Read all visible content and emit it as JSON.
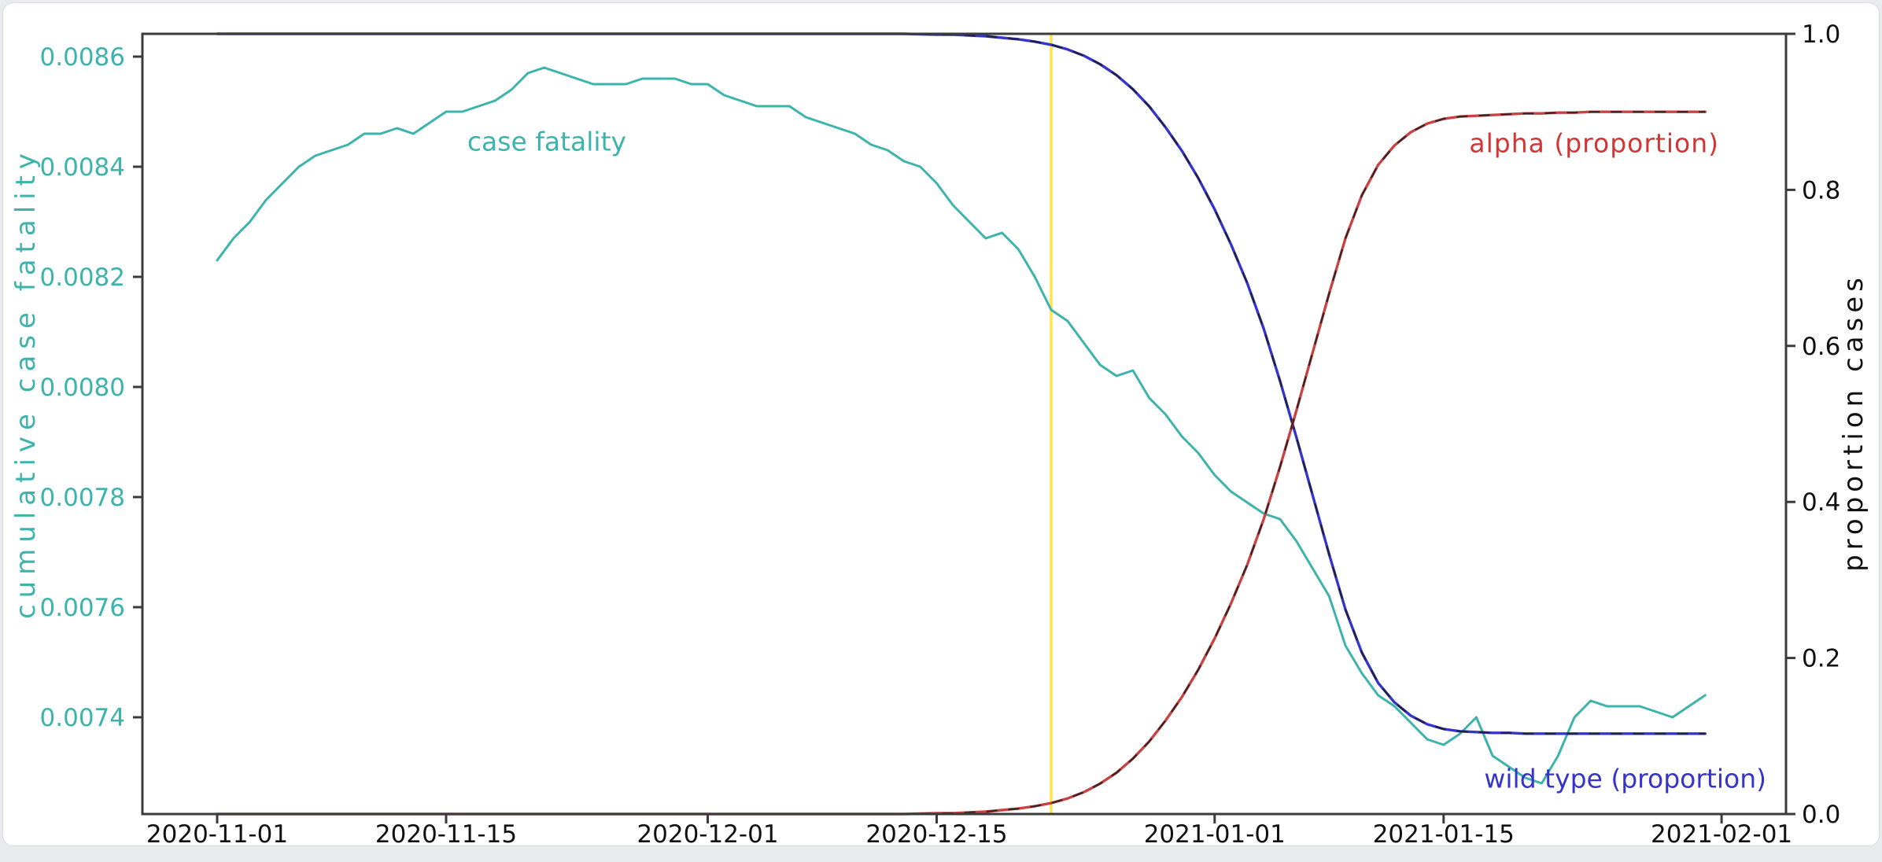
{
  "colors": {
    "case_fatality": "#3cb4ab",
    "wild_type": "#3534cb",
    "alpha": "#c84343",
    "alpha_label": "#d23535",
    "event_line": "#ffe44a",
    "axis": "#3b3b3b",
    "fit_overlay": "#1e1e1e",
    "page_background": "#e9ebee",
    "card_background": "#ffffff"
  },
  "chart_data": {
    "type": "line",
    "title": "",
    "xlabel": "",
    "x_axis": {
      "start_date": "2020-11-01",
      "range_days": [
        -4.57,
        95.94
      ],
      "ticks": [
        {
          "label": "2020-11-01",
          "day": 0
        },
        {
          "label": "2020-11-15",
          "day": 14
        },
        {
          "label": "2020-12-01",
          "day": 30
        },
        {
          "label": "2020-12-15",
          "day": 44
        },
        {
          "label": "2021-01-01",
          "day": 61
        },
        {
          "label": "2021-01-15",
          "day": 75
        },
        {
          "label": "2021-02-01",
          "day": 92
        }
      ]
    },
    "left_axis": {
      "label": "cumulative case fatality",
      "color": "#3cb4ab",
      "range": [
        0.0072243,
        0.0086414
      ],
      "ticks": [
        {
          "label": "0.0086",
          "value": 0.0086
        },
        {
          "label": "0.0084",
          "value": 0.0084
        },
        {
          "label": "0.0082",
          "value": 0.0082
        },
        {
          "label": "0.0080",
          "value": 0.008
        },
        {
          "label": "0.0078",
          "value": 0.0078
        },
        {
          "label": "0.0076",
          "value": 0.0076
        },
        {
          "label": "0.0074",
          "value": 0.0074
        }
      ]
    },
    "right_axis": {
      "label": "proportion cases",
      "color": "#111111",
      "range": [
        0.0,
        1.0
      ],
      "ticks": [
        {
          "label": "1.0",
          "value": 1.0
        },
        {
          "label": "0.8",
          "value": 0.8
        },
        {
          "label": "0.6",
          "value": 0.6
        },
        {
          "label": "0.4",
          "value": 0.4
        },
        {
          "label": "0.2",
          "value": 0.2
        },
        {
          "label": "0.0",
          "value": 0.0
        }
      ]
    },
    "vline": {
      "day": 51,
      "date": "2020-12-22",
      "color": "#ffe44a",
      "width": 3.5
    },
    "annotations": [
      {
        "text": "case fatality",
        "color": "#3cb4ab"
      },
      {
        "text": "alpha (proportion)",
        "color": "#d23535"
      },
      {
        "text": "wild type (proportion)",
        "color": "#3534cb"
      }
    ],
    "overlay_start_day": 43,
    "series": [
      {
        "name": "case fatality",
        "axis": "left",
        "color": "#3cb4ab",
        "width": 3,
        "dashed_overlay": false,
        "start_day": 0,
        "values": [
          0.00823,
          0.00827,
          0.0083,
          0.00834,
          0.00837,
          0.0084,
          0.00842,
          0.00843,
          0.00844,
          0.00846,
          0.00846,
          0.00847,
          0.00846,
          0.00848,
          0.0085,
          0.0085,
          0.00851,
          0.00852,
          0.00854,
          0.00857,
          0.00858,
          0.00857,
          0.00856,
          0.00855,
          0.00855,
          0.00855,
          0.00856,
          0.00856,
          0.00856,
          0.00855,
          0.00855,
          0.00853,
          0.00852,
          0.00851,
          0.00851,
          0.00851,
          0.00849,
          0.00848,
          0.00847,
          0.00846,
          0.00844,
          0.00843,
          0.00841,
          0.0084,
          0.00837,
          0.00833,
          0.0083,
          0.00827,
          0.00828,
          0.00825,
          0.0082,
          0.00814,
          0.00812,
          0.00808,
          0.00804,
          0.00802,
          0.00803,
          0.00798,
          0.00795,
          0.00791,
          0.00788,
          0.00784,
          0.00781,
          0.00779,
          0.00777,
          0.00776,
          0.00772,
          0.00767,
          0.00762,
          0.00753,
          0.00748,
          0.00744,
          0.00742,
          0.00739,
          0.00736,
          0.00735,
          0.00737,
          0.0074,
          0.00733,
          0.00731,
          0.00729,
          0.00728,
          0.00733,
          0.0074,
          0.00743,
          0.00742,
          0.00742,
          0.00742,
          0.00741,
          0.0074,
          0.00742,
          0.00744
        ]
      },
      {
        "name": "wild type (proportion)",
        "axis": "right",
        "color": "#3534cb",
        "width": 3.4,
        "dashed_overlay": true,
        "start_day": 0,
        "values": [
          1.0,
          1.0,
          1.0,
          1.0,
          1.0,
          1.0,
          1.0,
          1.0,
          1.0,
          1.0,
          1.0,
          1.0,
          1.0,
          1.0,
          1.0,
          1.0,
          1.0,
          1.0,
          1.0,
          1.0,
          1.0,
          1.0,
          1.0,
          1.0,
          1.0,
          1.0,
          1.0,
          1.0,
          1.0,
          1.0,
          1.0,
          1.0,
          1.0,
          1.0,
          1.0,
          1.0,
          1.0,
          1.0,
          1.0,
          1.0,
          1.0,
          1.0,
          1.0,
          0.9995,
          0.999,
          0.999,
          0.998,
          0.997,
          0.995,
          0.993,
          0.99,
          0.986,
          0.98,
          0.972,
          0.961,
          0.947,
          0.929,
          0.907,
          0.88,
          0.85,
          0.815,
          0.775,
          0.73,
          0.68,
          0.622,
          0.555,
          0.483,
          0.408,
          0.333,
          0.262,
          0.207,
          0.168,
          0.143,
          0.126,
          0.115,
          0.109,
          0.106,
          0.105,
          0.104,
          0.104,
          0.103,
          0.103,
          0.103,
          0.103,
          0.103,
          0.103,
          0.103,
          0.103,
          0.103,
          0.103,
          0.103,
          0.103
        ]
      },
      {
        "name": "alpha (proportion)",
        "axis": "right",
        "color": "#c84343",
        "width": 3.4,
        "dashed_overlay": true,
        "start_day": 0,
        "values": [
          0.0,
          0.0,
          0.0,
          0.0,
          0.0,
          0.0,
          0.0,
          0.0,
          0.0,
          0.0,
          0.0,
          0.0,
          0.0,
          0.0,
          0.0,
          0.0,
          0.0,
          0.0,
          0.0,
          0.0,
          0.0,
          0.0,
          0.0,
          0.0,
          0.0,
          0.0,
          0.0,
          0.0,
          0.0,
          0.0,
          0.0,
          0.0,
          0.0,
          0.0,
          0.0,
          0.0,
          0.0,
          0.0,
          0.0,
          0.0,
          0.0,
          0.0,
          0.0,
          0.0005,
          0.001,
          0.001,
          0.002,
          0.003,
          0.005,
          0.007,
          0.01,
          0.014,
          0.02,
          0.028,
          0.039,
          0.053,
          0.071,
          0.093,
          0.12,
          0.15,
          0.185,
          0.225,
          0.27,
          0.32,
          0.378,
          0.445,
          0.517,
          0.592,
          0.667,
          0.738,
          0.793,
          0.832,
          0.857,
          0.874,
          0.885,
          0.891,
          0.894,
          0.895,
          0.896,
          0.897,
          0.898,
          0.898,
          0.899,
          0.899,
          0.9,
          0.9,
          0.9,
          0.9,
          0.9,
          0.9,
          0.9,
          0.9
        ]
      }
    ]
  }
}
